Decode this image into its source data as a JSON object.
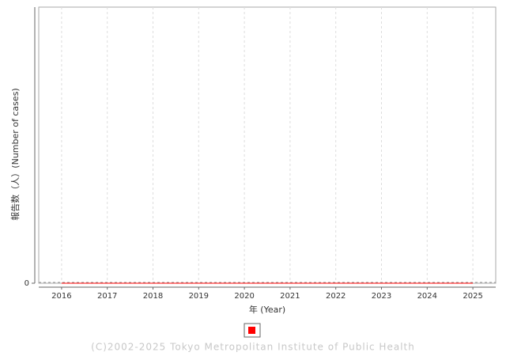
{
  "chart_data": {
    "type": "line",
    "x_label": "年 (Year)",
    "y_label": "報告数（人）(Number of cases)",
    "categories": [
      "2016",
      "2017",
      "2018",
      "2019",
      "2020",
      "2021",
      "2022",
      "2023",
      "2024",
      "2025"
    ],
    "series": [
      {
        "color": "#ff0000",
        "values": [
          0,
          0,
          0,
          0,
          0,
          0,
          0,
          0,
          0,
          0
        ]
      }
    ],
    "ylim": [
      0,
      1
    ],
    "yticks": [
      0
    ],
    "grid": true,
    "legend": "bottom",
    "footer": "(C)2002-2025 Tokyo Metropolitan Institute of Public Health"
  }
}
